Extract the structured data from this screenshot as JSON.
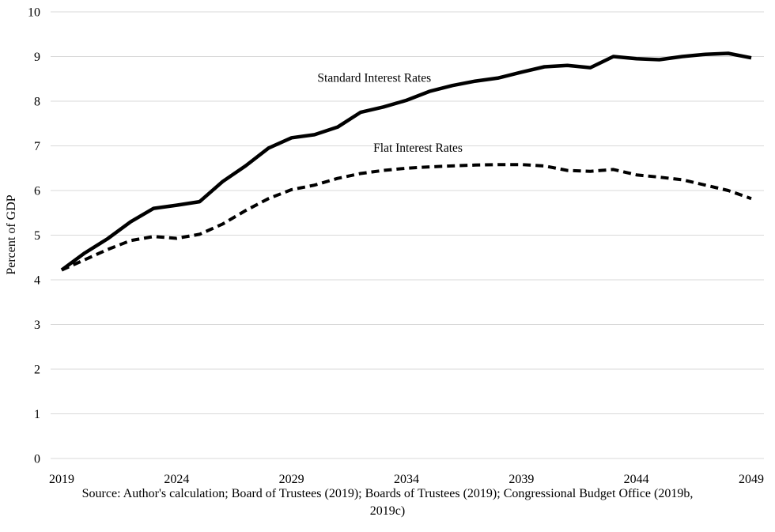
{
  "chart_data": {
    "type": "line",
    "title": "",
    "xlabel": "",
    "ylabel": "Percent of GDP",
    "ylim": [
      0,
      10
    ],
    "yticks": [
      0,
      1,
      2,
      3,
      4,
      5,
      6,
      7,
      8,
      9,
      10
    ],
    "xlim": [
      2019,
      2049
    ],
    "xticks": [
      2019,
      2024,
      2029,
      2034,
      2039,
      2044,
      2049
    ],
    "grid": "horizontal-only",
    "legend_position": "inline-annotations",
    "x": [
      2019,
      2020,
      2021,
      2022,
      2023,
      2024,
      2025,
      2026,
      2027,
      2028,
      2029,
      2030,
      2031,
      2032,
      2033,
      2034,
      2035,
      2036,
      2037,
      2038,
      2039,
      2040,
      2041,
      2042,
      2043,
      2044,
      2045,
      2046,
      2047,
      2048,
      2049
    ],
    "series": [
      {
        "name": "Standard Interest Rates",
        "line_style": "solid",
        "values": [
          4.22,
          4.6,
          4.92,
          5.3,
          5.6,
          5.67,
          5.75,
          6.2,
          6.55,
          6.95,
          7.18,
          7.25,
          7.42,
          7.75,
          7.87,
          8.02,
          8.22,
          8.35,
          8.45,
          8.52,
          8.65,
          8.77,
          8.8,
          8.75,
          9.0,
          8.95,
          8.93,
          9.0,
          9.05,
          9.07,
          8.97
        ],
        "label_anchor": {
          "x": 2032.6,
          "y": 8.43
        }
      },
      {
        "name": "Flat Interest Rates",
        "line_style": "dashed",
        "values": [
          4.22,
          4.45,
          4.68,
          4.88,
          4.97,
          4.93,
          5.02,
          5.25,
          5.55,
          5.82,
          6.02,
          6.12,
          6.27,
          6.38,
          6.45,
          6.5,
          6.53,
          6.55,
          6.57,
          6.58,
          6.58,
          6.55,
          6.45,
          6.43,
          6.47,
          6.35,
          6.3,
          6.24,
          6.12,
          6.0,
          5.82
        ],
        "label_anchor": {
          "x": 2034.5,
          "y": 6.87
        }
      }
    ]
  },
  "source_note": "Source: Author's calculation; Board of Trustees (2019); Boards of Trustees (2019); Congressional Budget Office (2019b, 2019c)",
  "colors": {
    "line": "#000000",
    "grid": "#d9d9d9",
    "text": "#000000",
    "background": "#ffffff"
  }
}
